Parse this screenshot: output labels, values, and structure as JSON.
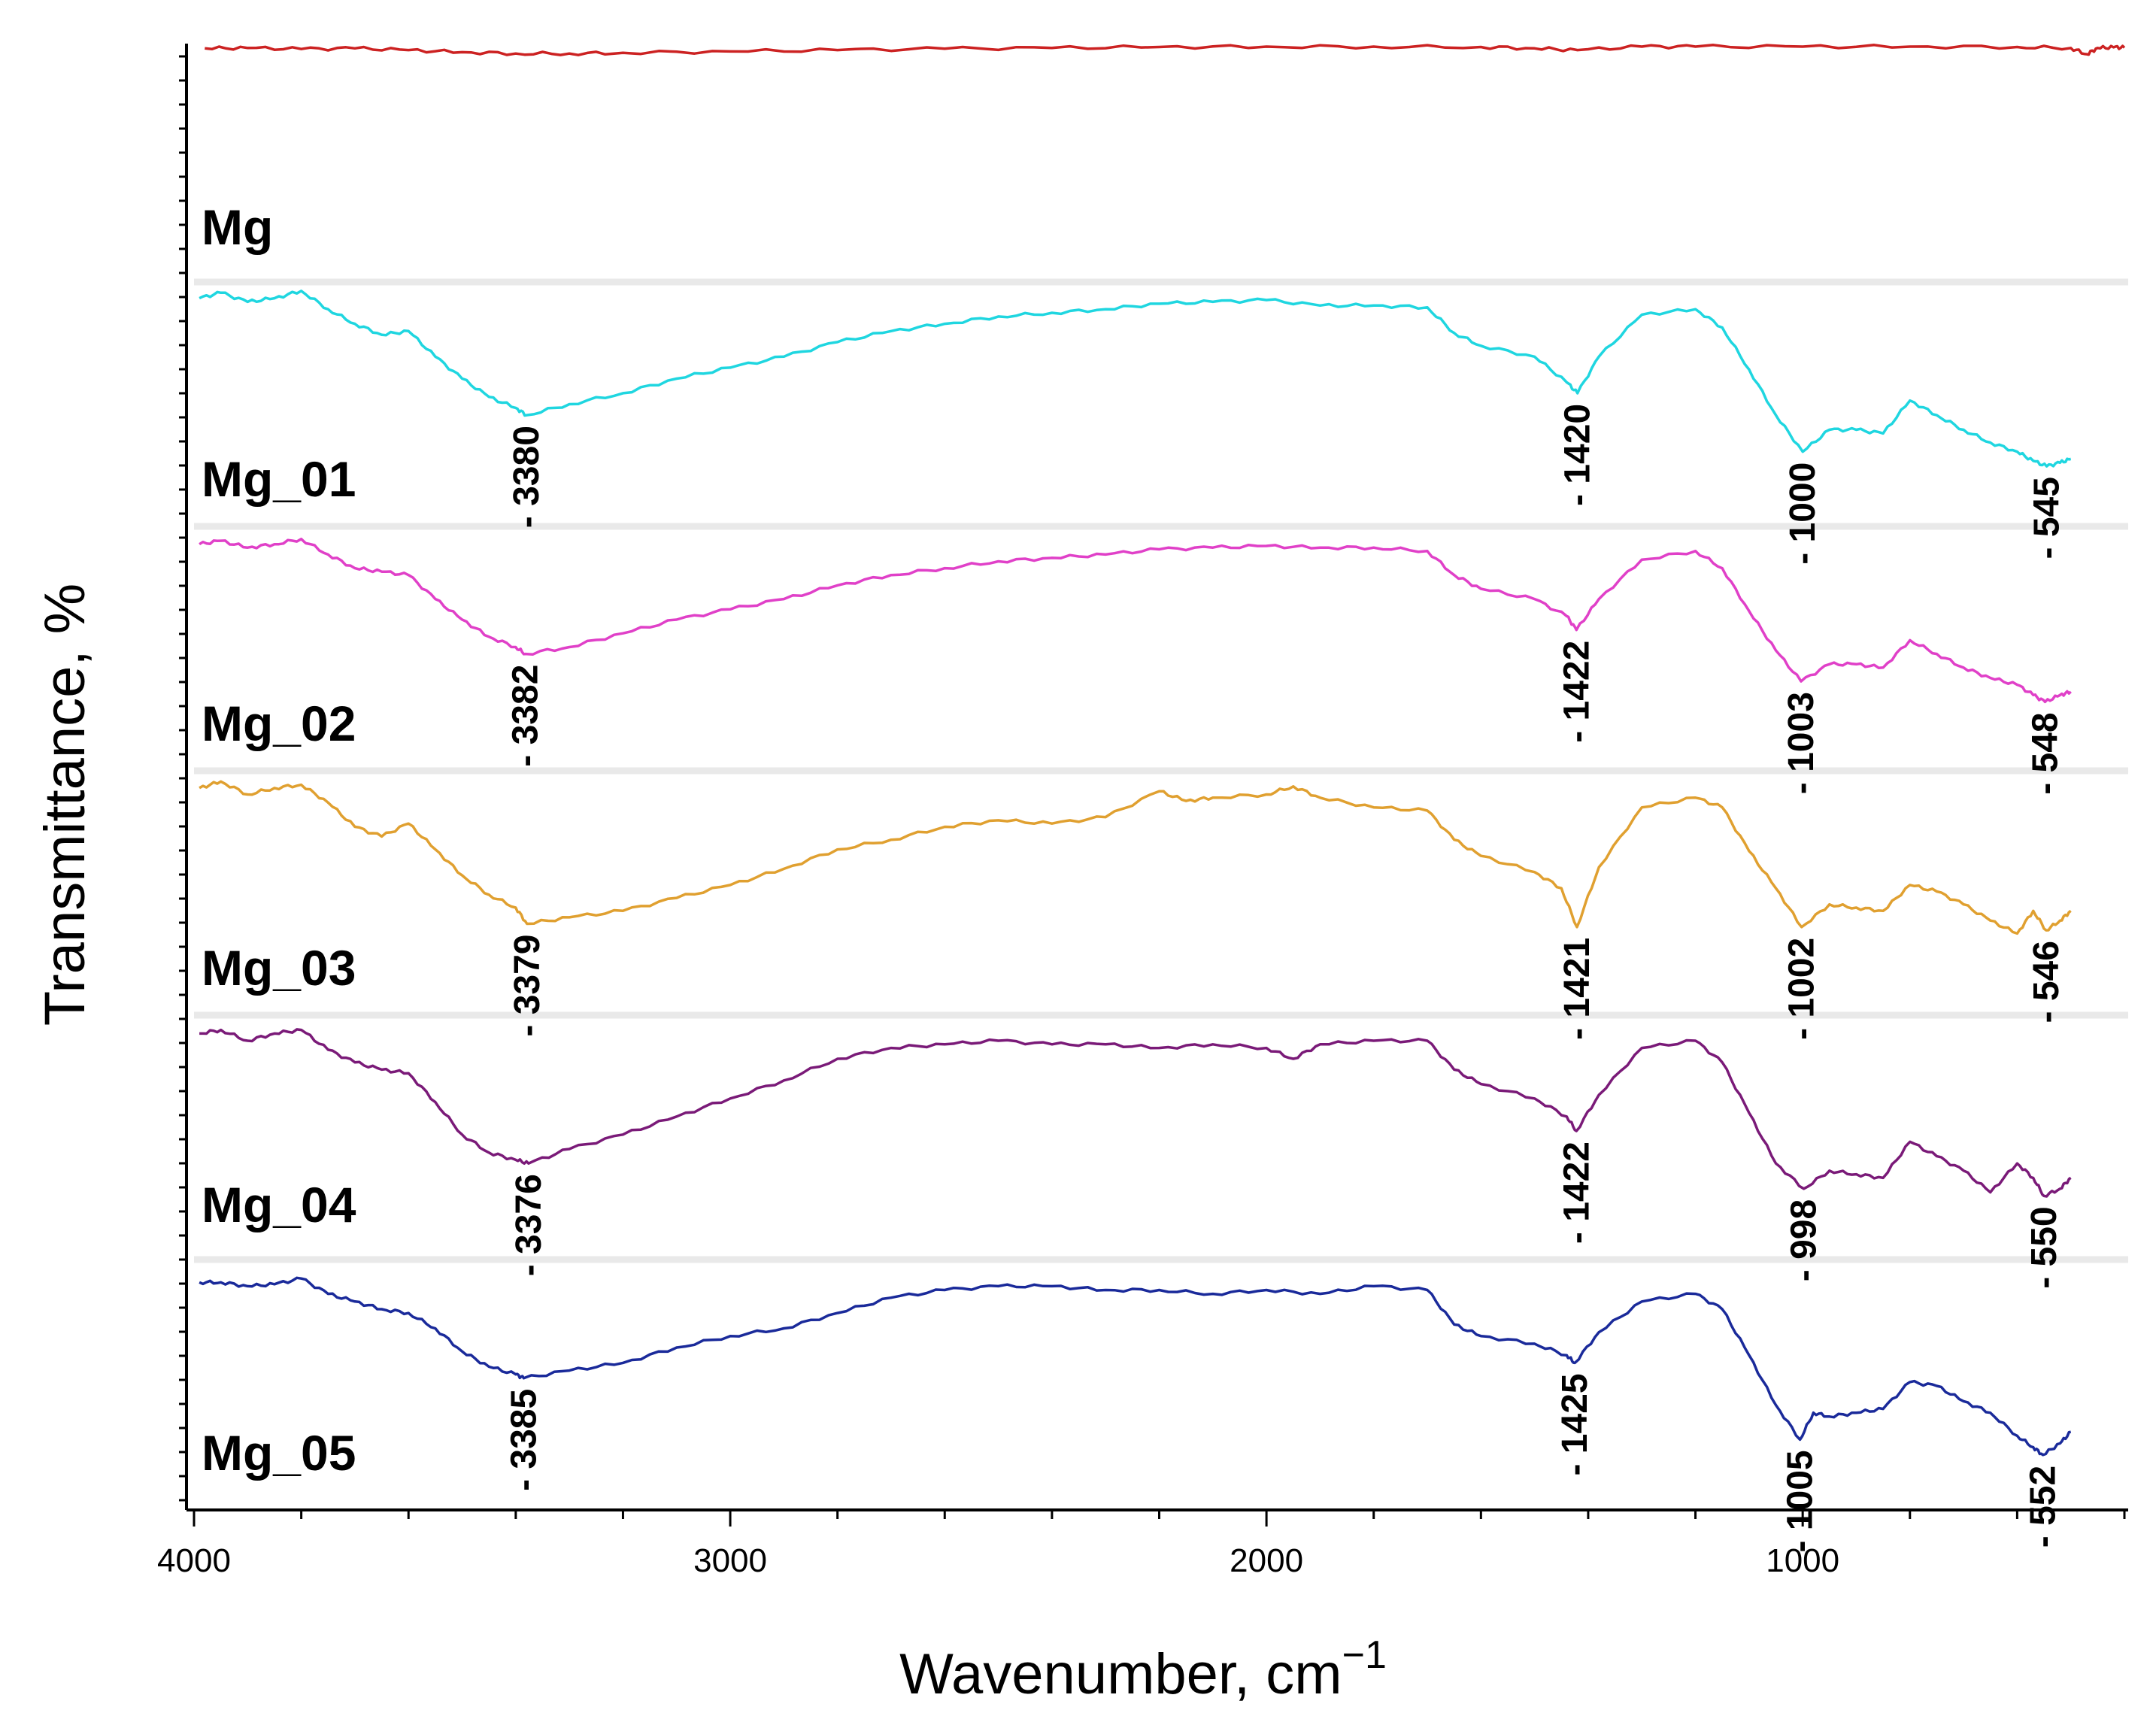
{
  "chart_data": {
    "type": "line",
    "title": "",
    "xlabel": "Wavenumber, cm",
    "xlabel_superscript": "−1",
    "ylabel": "Transmittance, %",
    "xlim": [
      4000,
      400
    ],
    "x_reversed": true,
    "x_ticks": [
      4000,
      3000,
      2000,
      1000
    ],
    "x_tick_labels": [
      "4000",
      "3000",
      "2000",
      "1000"
    ],
    "grid": false,
    "legend": "none (series labelled inline at left)",
    "series": [
      {
        "name": "Mg",
        "color": "#cc2222",
        "offset_rank": 0,
        "x": [
          3980,
          3900,
          3800,
          3700,
          3600,
          3500,
          3400,
          3300,
          3200,
          3000,
          2800,
          2600,
          2400,
          2200,
          2000,
          1800,
          1600,
          1500,
          1420,
          1300,
          1200,
          1000,
          800,
          600,
          500,
          470,
          450,
          420,
          400
        ],
        "y": [
          0.95,
          0.96,
          0.93,
          0.95,
          0.9,
          0.84,
          0.8,
          0.8,
          0.82,
          0.86,
          0.9,
          0.94,
          0.96,
          0.99,
          1.0,
          1.0,
          0.99,
          0.95,
          0.9,
          1.0,
          1.0,
          1.0,
          1.0,
          0.99,
          0.96,
          0.78,
          0.96,
          0.98,
          0.97
        ],
        "peaks": []
      },
      {
        "name": "Mg_01",
        "color": "#1fd6e0",
        "offset_rank": 1,
        "x": [
          3990,
          3950,
          3900,
          3850,
          3800,
          3750,
          3700,
          3650,
          3600,
          3550,
          3500,
          3450,
          3400,
          3380,
          3300,
          3200,
          3100,
          3000,
          2900,
          2800,
          2700,
          2600,
          2500,
          2400,
          2300,
          2200,
          2100,
          2000,
          1900,
          1800,
          1700,
          1650,
          1600,
          1500,
          1440,
          1420,
          1380,
          1300,
          1200,
          1150,
          1100,
          1050,
          1000,
          950,
          900,
          850,
          800,
          750,
          700,
          650,
          600,
          570,
          545,
          520,
          500
        ],
        "y": [
          0.94,
          0.97,
          0.92,
          0.94,
          0.98,
          0.88,
          0.8,
          0.74,
          0.76,
          0.62,
          0.5,
          0.4,
          0.34,
          0.3,
          0.36,
          0.42,
          0.5,
          0.56,
          0.62,
          0.7,
          0.76,
          0.8,
          0.84,
          0.86,
          0.88,
          0.91,
          0.92,
          0.93,
          0.9,
          0.9,
          0.89,
          0.75,
          0.68,
          0.62,
          0.48,
          0.42,
          0.62,
          0.85,
          0.88,
          0.78,
          0.55,
          0.3,
          0.1,
          0.22,
          0.22,
          0.2,
          0.38,
          0.3,
          0.22,
          0.15,
          0.1,
          0.05,
          0.02,
          0.04,
          0.06
        ],
        "peaks": [
          3380,
          1420,
          1000,
          545
        ],
        "peak_labels": [
          "3380",
          "1420",
          "1000",
          "545"
        ]
      },
      {
        "name": "Mg_02",
        "color": "#e040c8",
        "offset_rank": 2,
        "x": [
          3990,
          3950,
          3900,
          3850,
          3800,
          3750,
          3700,
          3650,
          3600,
          3550,
          3500,
          3450,
          3400,
          3382,
          3300,
          3200,
          3100,
          3000,
          2900,
          2800,
          2700,
          2600,
          2500,
          2400,
          2300,
          2200,
          2100,
          2000,
          1900,
          1800,
          1700,
          1650,
          1600,
          1500,
          1440,
          1422,
          1380,
          1300,
          1200,
          1150,
          1100,
          1050,
          1003,
          950,
          900,
          850,
          800,
          750,
          700,
          650,
          600,
          570,
          548,
          520,
          500
        ],
        "y": [
          0.94,
          0.96,
          0.92,
          0.94,
          0.97,
          0.88,
          0.8,
          0.78,
          0.76,
          0.62,
          0.5,
          0.4,
          0.34,
          0.3,
          0.34,
          0.42,
          0.5,
          0.56,
          0.62,
          0.7,
          0.76,
          0.8,
          0.84,
          0.86,
          0.88,
          0.91,
          0.92,
          0.93,
          0.92,
          0.92,
          0.9,
          0.76,
          0.68,
          0.62,
          0.52,
          0.44,
          0.62,
          0.85,
          0.9,
          0.8,
          0.55,
          0.32,
          0.14,
          0.24,
          0.24,
          0.22,
          0.38,
          0.3,
          0.22,
          0.16,
          0.12,
          0.06,
          0.02,
          0.06,
          0.08
        ],
        "peaks": [
          3382,
          1422,
          1003,
          548
        ],
        "peak_labels": [
          "3382",
          "1422",
          "1003",
          "548"
        ]
      },
      {
        "name": "Mg_03",
        "color": "#e0a030",
        "offset_rank": 3,
        "x": [
          3990,
          3950,
          3900,
          3850,
          3800,
          3750,
          3700,
          3650,
          3600,
          3550,
          3500,
          3450,
          3400,
          3379,
          3300,
          3200,
          3100,
          3000,
          2900,
          2800,
          2700,
          2600,
          2500,
          2400,
          2300,
          2200,
          2150,
          2100,
          2000,
          1950,
          1900,
          1800,
          1700,
          1650,
          1600,
          1500,
          1450,
          1421,
          1380,
          1300,
          1200,
          1150,
          1100,
          1050,
          1002,
          950,
          900,
          850,
          800,
          750,
          700,
          650,
          600,
          570,
          546,
          520,
          500
        ],
        "y": [
          0.94,
          0.98,
          0.9,
          0.94,
          0.96,
          0.85,
          0.7,
          0.64,
          0.72,
          0.56,
          0.4,
          0.28,
          0.2,
          0.1,
          0.14,
          0.18,
          0.26,
          0.34,
          0.44,
          0.56,
          0.62,
          0.7,
          0.74,
          0.72,
          0.76,
          0.92,
          0.86,
          0.88,
          0.9,
          0.95,
          0.88,
          0.82,
          0.8,
          0.62,
          0.52,
          0.42,
          0.32,
          0.08,
          0.45,
          0.82,
          0.88,
          0.82,
          0.55,
          0.32,
          0.08,
          0.22,
          0.2,
          0.18,
          0.34,
          0.3,
          0.22,
          0.12,
          0.04,
          0.18,
          0.06,
          0.12,
          0.18
        ],
        "peaks": [
          3379,
          1421,
          1002,
          546
        ],
        "peak_labels": [
          "3379",
          "1421",
          "1002",
          "546"
        ]
      },
      {
        "name": "Mg_04",
        "color": "#7a1a78",
        "offset_rank": 4,
        "x": [
          3990,
          3950,
          3900,
          3850,
          3800,
          3750,
          3700,
          3650,
          3600,
          3550,
          3500,
          3450,
          3400,
          3376,
          3300,
          3200,
          3100,
          3000,
          2900,
          2800,
          2700,
          2600,
          2500,
          2400,
          2300,
          2200,
          2100,
          2000,
          1950,
          1900,
          1800,
          1700,
          1650,
          1600,
          1500,
          1440,
          1422,
          1380,
          1300,
          1200,
          1150,
          1100,
          1050,
          998,
          950,
          900,
          850,
          800,
          750,
          700,
          650,
          600,
          570,
          550,
          520,
          500
        ],
        "y": [
          0.94,
          0.96,
          0.9,
          0.94,
          0.96,
          0.85,
          0.78,
          0.74,
          0.72,
          0.56,
          0.38,
          0.28,
          0.24,
          0.22,
          0.3,
          0.38,
          0.48,
          0.58,
          0.68,
          0.8,
          0.86,
          0.88,
          0.9,
          0.88,
          0.88,
          0.86,
          0.88,
          0.86,
          0.8,
          0.88,
          0.9,
          0.9,
          0.74,
          0.66,
          0.58,
          0.48,
          0.4,
          0.6,
          0.86,
          0.9,
          0.78,
          0.5,
          0.22,
          0.08,
          0.18,
          0.16,
          0.14,
          0.34,
          0.26,
          0.18,
          0.06,
          0.22,
          0.14,
          0.04,
          0.08,
          0.14
        ],
        "peaks": [
          3376,
          1422,
          998,
          550
        ],
        "peak_labels": [
          "3376",
          "1422",
          "998",
          "550"
        ]
      },
      {
        "name": "Mg_05",
        "color": "#1a2a9a",
        "offset_rank": 5,
        "x": [
          3990,
          3950,
          3900,
          3850,
          3800,
          3750,
          3700,
          3650,
          3600,
          3550,
          3500,
          3450,
          3400,
          3385,
          3300,
          3200,
          3100,
          3000,
          2900,
          2800,
          2700,
          2600,
          2500,
          2400,
          2300,
          2200,
          2100,
          2000,
          1900,
          1800,
          1700,
          1650,
          1600,
          1500,
          1440,
          1425,
          1380,
          1300,
          1200,
          1150,
          1100,
          1050,
          1005,
          980,
          950,
          900,
          850,
          800,
          750,
          700,
          650,
          600,
          570,
          552,
          520,
          500
        ],
        "y": [
          0.94,
          0.94,
          0.92,
          0.93,
          0.96,
          0.88,
          0.84,
          0.8,
          0.78,
          0.7,
          0.58,
          0.5,
          0.46,
          0.44,
          0.48,
          0.52,
          0.6,
          0.66,
          0.7,
          0.78,
          0.86,
          0.9,
          0.92,
          0.92,
          0.9,
          0.9,
          0.88,
          0.9,
          0.88,
          0.92,
          0.9,
          0.72,
          0.66,
          0.62,
          0.56,
          0.52,
          0.68,
          0.84,
          0.88,
          0.8,
          0.56,
          0.3,
          0.12,
          0.26,
          0.24,
          0.26,
          0.28,
          0.42,
          0.4,
          0.32,
          0.26,
          0.14,
          0.08,
          0.04,
          0.1,
          0.16
        ],
        "peaks": [
          3385,
          1425,
          1005,
          552
        ],
        "peak_labels": [
          "3385",
          "1425",
          "1005",
          "552"
        ]
      }
    ]
  }
}
